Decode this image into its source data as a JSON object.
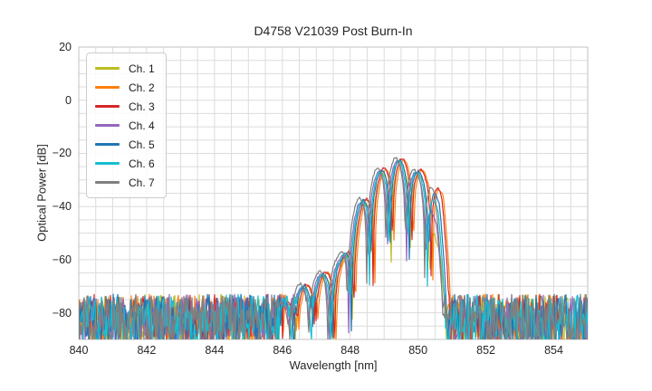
{
  "figure": {
    "background_color": "#ffffff",
    "text_color": "#262626",
    "grid_color": "#dcdcdc",
    "spine_color": "#cccccc"
  },
  "legend": {
    "position": "upper left",
    "entries": [
      "Ch. 1",
      "Ch. 2",
      "Ch. 3",
      "Ch. 4",
      "Ch. 5",
      "Ch. 6",
      "Ch. 7"
    ]
  },
  "chart_data": {
    "type": "line",
    "title": "D4758 V21039 Post Burn-In",
    "xlabel": "Wavelength [nm]",
    "ylabel": "Optical Power [dB]",
    "xlim": [
      840,
      855
    ],
    "ylim": [
      -90,
      20
    ],
    "xticks": [
      840,
      842,
      844,
      846,
      848,
      850,
      852,
      854
    ],
    "yticks": [
      20,
      0,
      -20,
      -40,
      -60,
      -80
    ],
    "x_minor_grid_step_nm": 0.5,
    "y_minor_grid_step_db": 5,
    "grid": true,
    "legend_position": "upper left",
    "description": "Seven-channel optical spectra: broadband noise floor near -80 dB, a multi-lobed passband rising from about 846.5 nm, main peak near 849.45 nm at about -22 dB, sharp cutoff near 850.7 nm back to the noise floor.",
    "main_peak": {
      "wavelength_nm": 849.45,
      "power_db": -22
    },
    "noise_floor_db": -80,
    "lobe_peaks_nm_db": [
      [
        846.6,
        -70
      ],
      [
        847.17,
        -65.5
      ],
      [
        847.74,
        -60
      ],
      [
        848.31,
        -38.5
      ],
      [
        848.88,
        -26.5
      ],
      [
        849.45,
        -22.3
      ],
      [
        850.02,
        -27
      ],
      [
        850.45,
        -31
      ]
    ],
    "series": [
      {
        "name": "Ch. 1",
        "color": "#bcbd22",
        "offset_nm": 0.04,
        "gain_db": -1.2,
        "right_edge_drop_db": -20,
        "seed": 11
      },
      {
        "name": "Ch. 2",
        "color": "#ff7f0e",
        "offset_nm": 0.13,
        "gain_db": 0.3,
        "right_edge_drop_db": 0,
        "seed": 22
      },
      {
        "name": "Ch. 3",
        "color": "#d62728",
        "offset_nm": 0.08,
        "gain_db": 0.6,
        "right_edge_drop_db": 0,
        "seed": 33
      },
      {
        "name": "Ch. 4",
        "color": "#9467bd",
        "offset_nm": -0.07,
        "gain_db": -0.6,
        "right_edge_drop_db": -9,
        "seed": 44
      },
      {
        "name": "Ch. 5",
        "color": "#1f77b4",
        "offset_nm": 0.01,
        "gain_db": 0.0,
        "right_edge_drop_db": -2,
        "seed": 55
      },
      {
        "name": "Ch. 6",
        "color": "#17becf",
        "offset_nm": -0.03,
        "gain_db": -0.4,
        "right_edge_drop_db": -4,
        "seed": 66
      },
      {
        "name": "Ch. 7",
        "color": "#7f7f7f",
        "offset_nm": -0.11,
        "gain_db": 0.8,
        "right_edge_drop_db": 0,
        "seed": 77
      }
    ],
    "spectrum_model": {
      "envelope_points_nm_db": [
        [
          845.95,
          -78
        ],
        [
          846.6,
          -70
        ],
        [
          847.17,
          -65.5
        ],
        [
          847.74,
          -60
        ],
        [
          848.31,
          -38.5
        ],
        [
          848.88,
          -26.5
        ],
        [
          849.45,
          -22.3
        ],
        [
          850.02,
          -27
        ],
        [
          850.45,
          -31
        ],
        [
          850.62,
          -37
        ],
        [
          850.78,
          -58
        ],
        [
          850.92,
          -80
        ]
      ],
      "lobe_spacing_nm": 0.57,
      "lobe_peak_reference_nm": 846.6,
      "notch_floor_db_rel": -38,
      "noise_mean_db": -83,
      "noise_peak_to_peak_db": 20,
      "noise_when_envelope_below_db": -63,
      "edge_drop_start_nm": 850.1,
      "edge_drop_width_nm": 0.5
    }
  }
}
